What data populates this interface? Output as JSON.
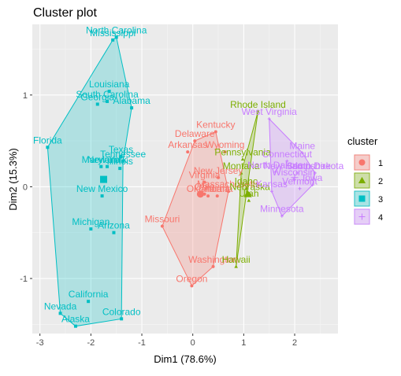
{
  "chart_data": {
    "type": "scatter",
    "title": "Cluster plot",
    "xlabel": "Dim1 (78.6%)",
    "ylabel": "Dim2 (15.3%)",
    "xlim": [
      -3.15,
      2.85
    ],
    "ylim": [
      -1.6,
      1.77
    ],
    "xticks": [
      -3,
      -2,
      -1,
      0,
      1,
      2
    ],
    "yticks": [
      -1,
      0,
      1
    ],
    "grid": true,
    "legend": {
      "title": "cluster",
      "position": "right",
      "entries": [
        "1",
        "2",
        "3",
        "4"
      ]
    },
    "colors": {
      "1": "#F8766D",
      "2": "#7CAE00",
      "3": "#00BFC4",
      "4": "#C77CFF"
    },
    "markers": {
      "1": "circle",
      "2": "triangle",
      "3": "square",
      "4": "cross"
    },
    "points": [
      {
        "label": "Mississippi",
        "x": -1.57,
        "y": 1.6,
        "cluster": 3
      },
      {
        "label": "North Carolina",
        "x": -1.5,
        "y": 1.63,
        "cluster": 3
      },
      {
        "label": "Louisiana",
        "x": -1.64,
        "y": 1.04,
        "cluster": 3
      },
      {
        "label": "South Carolina",
        "x": -1.68,
        "y": 0.93,
        "cluster": 3
      },
      {
        "label": "Georgia",
        "x": -1.87,
        "y": 0.9,
        "cluster": 3
      },
      {
        "label": "Alabama",
        "x": -1.2,
        "y": 0.86,
        "cluster": 3
      },
      {
        "label": "Florida",
        "x": -2.85,
        "y": 0.43,
        "cluster": 3
      },
      {
        "label": "Texas",
        "x": -1.41,
        "y": 0.33,
        "cluster": 3
      },
      {
        "label": "Tennessee",
        "x": -1.37,
        "y": 0.28,
        "cluster": 3
      },
      {
        "label": "Illinois",
        "x": -1.43,
        "y": 0.2,
        "cluster": 3
      },
      {
        "label": "Maryland",
        "x": -1.8,
        "y": 0.22,
        "cluster": 3
      },
      {
        "label": "New York",
        "x": -1.68,
        "y": 0.22,
        "cluster": 3
      },
      {
        "label": "New Mexico",
        "x": -1.78,
        "y": -0.1,
        "cluster": 3
      },
      {
        "label": "Michigan",
        "x": -2.0,
        "y": -0.46,
        "cluster": 3
      },
      {
        "label": "Arizona",
        "x": -1.55,
        "y": -0.5,
        "cluster": 3
      },
      {
        "label": "California",
        "x": -2.05,
        "y": -1.25,
        "cluster": 3
      },
      {
        "label": "Nevada",
        "x": -2.6,
        "y": -1.38,
        "cluster": 3
      },
      {
        "label": "Alaska",
        "x": -2.3,
        "y": -1.52,
        "cluster": 3
      },
      {
        "label": "Colorado",
        "x": -1.4,
        "y": -1.44,
        "cluster": 3
      },
      {
        "label": "Kentucky",
        "x": 0.45,
        "y": 0.6,
        "cluster": 1
      },
      {
        "label": "Delaware",
        "x": 0.04,
        "y": 0.5,
        "cluster": 1
      },
      {
        "label": "Wyoming",
        "x": 0.63,
        "y": 0.38,
        "cluster": 1
      },
      {
        "label": "Arkansas",
        "x": -0.1,
        "y": 0.38,
        "cluster": 1
      },
      {
        "label": "New Jersey",
        "x": 0.5,
        "y": 0.1,
        "cluster": 1
      },
      {
        "label": "Virginia",
        "x": 0.23,
        "y": 0.05,
        "cluster": 1
      },
      {
        "label": "Oklahoma",
        "x": 0.3,
        "y": -0.1,
        "cluster": 1
      },
      {
        "label": "Indiana",
        "x": 0.48,
        "y": -0.1,
        "cluster": 1
      },
      {
        "label": "Ohio",
        "x": 0.23,
        "y": -0.08,
        "cluster": 1
      },
      {
        "label": "Massachusetts",
        "x": 0.7,
        "y": -0.05,
        "cluster": 1
      },
      {
        "label": "Missouri",
        "x": -0.6,
        "y": -0.43,
        "cluster": 1
      },
      {
        "label": "Washington",
        "x": 0.4,
        "y": -0.87,
        "cluster": 1
      },
      {
        "label": "Oregon",
        "x": -0.02,
        "y": -1.08,
        "cluster": 1
      },
      {
        "label": "Rhode Island",
        "x": 1.28,
        "y": 0.82,
        "cluster": 2
      },
      {
        "label": "Pennsylvania",
        "x": 0.98,
        "y": 0.3,
        "cluster": 2
      },
      {
        "label": "Montana",
        "x": 0.95,
        "y": 0.15,
        "cluster": 2
      },
      {
        "label": "Idaho",
        "x": 1.05,
        "y": -0.02,
        "cluster": 2
      },
      {
        "label": "Nebraska",
        "x": 1.12,
        "y": -0.08,
        "cluster": 2
      },
      {
        "label": "Utah",
        "x": 1.1,
        "y": -0.15,
        "cluster": 2
      },
      {
        "label": "Hawaii",
        "x": 0.85,
        "y": -0.87,
        "cluster": 2
      },
      {
        "label": "West Virginia",
        "x": 1.5,
        "y": 0.74,
        "cluster": 4
      },
      {
        "label": "Maine",
        "x": 2.15,
        "y": 0.37,
        "cluster": 4
      },
      {
        "label": "Connecticut",
        "x": 1.85,
        "y": 0.28,
        "cluster": 4
      },
      {
        "label": "North Dakota",
        "x": 1.62,
        "y": 0.16,
        "cluster": 4
      },
      {
        "label": "New Hampshire",
        "x": 2.05,
        "y": 0.15,
        "cluster": 4
      },
      {
        "label": "South Dakota",
        "x": 2.4,
        "y": 0.15,
        "cluster": 4
      },
      {
        "label": "Wisconsin",
        "x": 1.98,
        "y": 0.08,
        "cluster": 4
      },
      {
        "label": "Iowa",
        "x": 2.35,
        "y": 0.02,
        "cluster": 4
      },
      {
        "label": "Vermont",
        "x": 2.1,
        "y": -0.02,
        "cluster": 4
      },
      {
        "label": "Kansas",
        "x": 1.55,
        "y": -0.05,
        "cluster": 4
      },
      {
        "label": "Minnesota",
        "x": 1.75,
        "y": -0.32,
        "cluster": 4
      }
    ],
    "centers": [
      {
        "cluster": 1,
        "x": 0.15,
        "y": -0.08
      },
      {
        "cluster": 2,
        "x": 1.08,
        "y": -0.08
      },
      {
        "cluster": 3,
        "x": -1.75,
        "y": 0.08
      },
      {
        "cluster": 4,
        "x": 2.0,
        "y": 0.1
      }
    ],
    "hulls": {
      "3": [
        "Mississippi",
        "North Carolina",
        "Alabama",
        "Tennessee",
        "Colorado",
        "Alaska",
        "Nevada",
        "Florida"
      ],
      "1": [
        "Kentucky",
        "Massachusetts",
        "Washington",
        "Oregon",
        "Missouri",
        "Delaware"
      ],
      "2": [
        "Rhode Island",
        "Hawaii",
        "Montana"
      ],
      "4": [
        "West Virginia",
        "Maine",
        "South Dakota",
        "Iowa",
        "Minnesota",
        "Kansas"
      ]
    }
  }
}
